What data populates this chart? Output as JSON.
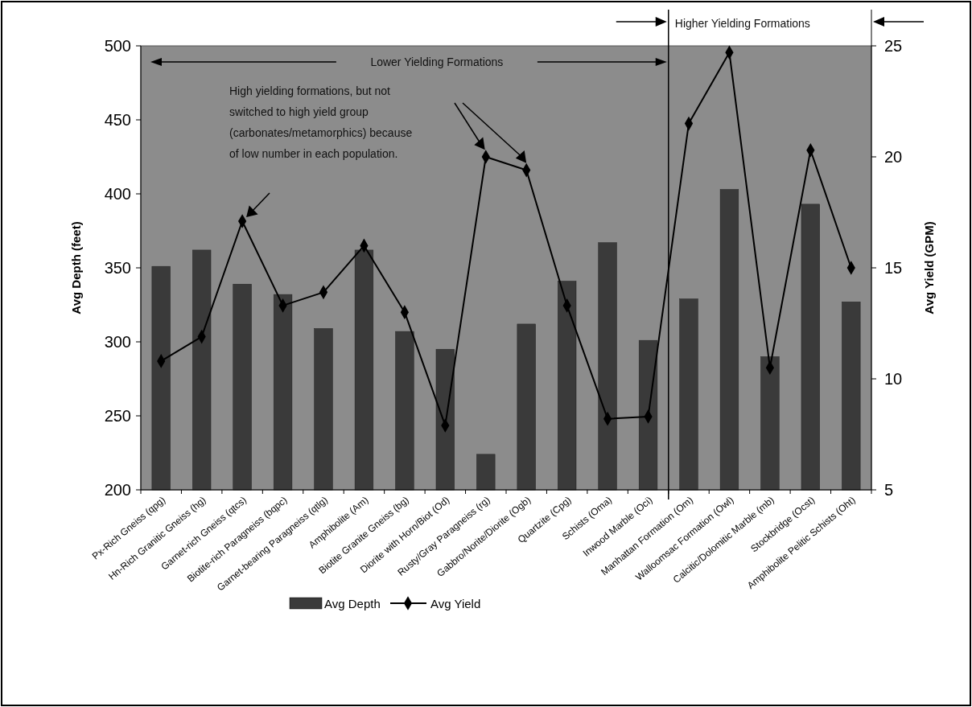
{
  "chart_data": {
    "type": "bar",
    "categories": [
      "Px-Rich Gneiss (qpg)",
      "Hn-Rich Granitic Gneiss (hg)",
      "Garnet-rich Gneiss (qtcs)",
      "Biotite-rich Paragneiss (bqpc)",
      "Garnet-bearing Paragneiss (qtlg)",
      "Amphibolite (Am)",
      "Biotite Granite Gneiss (bg)",
      "Diorite with Horn/Biot (Od)",
      "Rusty/Gray Paragneiss (rg)",
      "Gabbro/Norite/Diorite (Ogb)",
      "Quartzite (Cpg)",
      "Schists (Oma)",
      "Inwood Marble (Oci)",
      "Manhattan Formation (Om)",
      "Walloomsac Formation (Owl)",
      "Calcitic/Dolomitic Marble (mb)",
      "Stockbridge (Ocst)",
      "Amphibolite Pelitic Schists (Oht)"
    ],
    "series": [
      {
        "name": "Avg Depth",
        "color": "#3a3a3a",
        "values": [
          351,
          362,
          339,
          332,
          309,
          362,
          307,
          295,
          224,
          312,
          341,
          367,
          301,
          329,
          403,
          290,
          393,
          327
        ]
      },
      {
        "name": "Avg Yield",
        "type": "line",
        "axis": "y2",
        "color": "#000000",
        "marker": "diamond",
        "values": [
          10.8,
          11.9,
          17.1,
          13.3,
          13.9,
          16.0,
          13.0,
          7.9,
          20.0,
          19.4,
          13.3,
          8.2,
          8.3,
          21.5,
          24.7,
          10.5,
          20.3,
          15.0
        ]
      }
    ],
    "ylabel": "Avg Depth (feet)",
    "y2label": "Avg Yield (GPM)",
    "ylim": [
      200,
      500
    ],
    "yticks": [
      200,
      250,
      300,
      350,
      400,
      450,
      500
    ],
    "y2lim": [
      5,
      25
    ],
    "y2ticks": [
      5,
      10,
      15,
      20,
      25
    ],
    "annotations": [
      "Lower Yielding Formations",
      "Higher Yielding Formations",
      "High yielding formations, but not switched to high yield group (carbonates/metamorphics) because of low number in each population."
    ],
    "grid": false,
    "legend": "bottom"
  }
}
